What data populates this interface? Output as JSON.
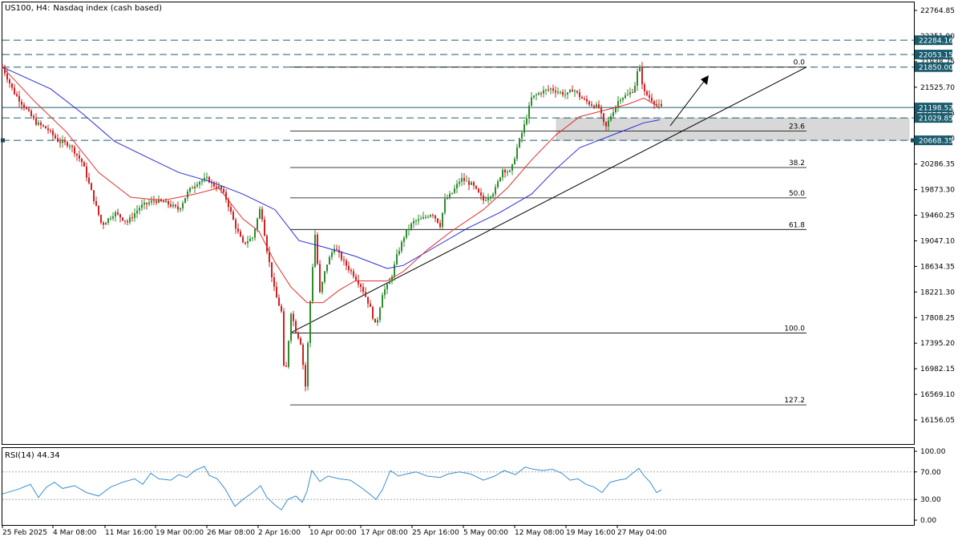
{
  "header": {
    "symbol": "US100, H4:",
    "description": "Nasdaq index (cash based)"
  },
  "colors": {
    "candle_up": "#2e8b2e",
    "candle_down": "#cc2222",
    "ma_fast": "#e03030",
    "ma_slow": "#2c2cd6",
    "rsi": "#3a8ed0",
    "level_line": "#1a5c6e",
    "badge_bg": "#1a5c6e",
    "badge_text": "#ffffff",
    "zone": "#d8d8d8"
  },
  "chart_data": [
    {
      "type": "candlestick",
      "title": "US100, H4: Nasdaq index (cash based)",
      "ylim": [
        15950,
        22960
      ],
      "y_ticks": [
        "22764.85",
        "22351.90",
        "21938.75",
        "21525.70",
        "21112.55",
        "20699.50",
        "20286.35",
        "19873.30",
        "19460.25",
        "19047.10",
        "18634.35",
        "18221.30",
        "17808.25",
        "17395.20",
        "16982.15",
        "16569.10",
        "16156.05"
      ],
      "x_ticks": [
        "25 Feb 2025",
        "4 Mar 08:00",
        "11 Mar 16:00",
        "19 Mar 00:00",
        "26 Mar 08:00",
        "2 Apr 16:00",
        "10 Apr 00:00",
        "17 Apr 08:00",
        "25 Apr 16:00",
        "5 May 00:00",
        "12 May 08:00",
        "19 May 16:00",
        "27 May 04:00"
      ],
      "price_path": [
        [
          0,
          21850
        ],
        [
          14,
          21450
        ],
        [
          28,
          21200
        ],
        [
          42,
          20950
        ],
        [
          56,
          20850
        ],
        [
          70,
          20650
        ],
        [
          84,
          20600
        ],
        [
          100,
          20300
        ],
        [
          112,
          19800
        ],
        [
          124,
          19300
        ],
        [
          140,
          19500
        ],
        [
          156,
          19350
        ],
        [
          172,
          19600
        ],
        [
          190,
          19700
        ],
        [
          206,
          19650
        ],
        [
          220,
          19550
        ],
        [
          232,
          19850
        ],
        [
          244,
          20000
        ],
        [
          256,
          20050
        ],
        [
          262,
          19950
        ],
        [
          272,
          19900
        ],
        [
          280,
          19700
        ],
        [
          290,
          19300
        ],
        [
          300,
          19000
        ],
        [
          312,
          19100
        ],
        [
          322,
          19600
        ],
        [
          330,
          18900
        ],
        [
          340,
          18200
        ],
        [
          348,
          17900
        ],
        [
          352,
          16700
        ],
        [
          360,
          17900
        ],
        [
          366,
          17600
        ],
        [
          372,
          17400
        ],
        [
          378,
          16700
        ],
        [
          385,
          18300
        ],
        [
          390,
          19150
        ],
        [
          396,
          18200
        ],
        [
          404,
          18650
        ],
        [
          414,
          18950
        ],
        [
          426,
          18700
        ],
        [
          438,
          18500
        ],
        [
          448,
          18300
        ],
        [
          458,
          18000
        ],
        [
          466,
          17650
        ],
        [
          474,
          18200
        ],
        [
          484,
          18400
        ],
        [
          492,
          18800
        ],
        [
          502,
          19150
        ],
        [
          512,
          19350
        ],
        [
          524,
          19400
        ],
        [
          536,
          19500
        ],
        [
          546,
          19300
        ],
        [
          552,
          19700
        ],
        [
          560,
          19800
        ],
        [
          572,
          20050
        ],
        [
          586,
          19950
        ],
        [
          600,
          19700
        ],
        [
          614,
          19850
        ],
        [
          624,
          20200
        ],
        [
          634,
          20150
        ],
        [
          642,
          20550
        ],
        [
          652,
          20950
        ],
        [
          660,
          21350
        ],
        [
          672,
          21450
        ],
        [
          684,
          21500
        ],
        [
          694,
          21450
        ],
        [
          704,
          21400
        ],
        [
          712,
          21500
        ],
        [
          722,
          21350
        ],
        [
          734,
          21250
        ],
        [
          744,
          21200
        ],
        [
          752,
          20850
        ],
        [
          760,
          21100
        ],
        [
          770,
          21350
        ],
        [
          780,
          21400
        ],
        [
          788,
          21500
        ],
        [
          794,
          21900
        ],
        [
          800,
          21450
        ],
        [
          808,
          21350
        ],
        [
          816,
          21250
        ],
        [
          822,
          21200
        ]
      ],
      "ma_fast": [
        [
          0,
          21850
        ],
        [
          40,
          21300
        ],
        [
          80,
          20800
        ],
        [
          120,
          20150
        ],
        [
          160,
          19750
        ],
        [
          200,
          19700
        ],
        [
          240,
          19800
        ],
        [
          270,
          19900
        ],
        [
          300,
          19400
        ],
        [
          320,
          19200
        ],
        [
          340,
          18700
        ],
        [
          360,
          18300
        ],
        [
          380,
          18050
        ],
        [
          400,
          18050
        ],
        [
          420,
          18250
        ],
        [
          440,
          18400
        ],
        [
          460,
          18400
        ],
        [
          480,
          18400
        ],
        [
          500,
          18550
        ],
        [
          530,
          18900
        ],
        [
          560,
          19200
        ],
        [
          600,
          19550
        ],
        [
          630,
          19900
        ],
        [
          660,
          20350
        ],
        [
          690,
          20750
        ],
        [
          720,
          21050
        ],
        [
          750,
          21150
        ],
        [
          780,
          21250
        ],
        [
          800,
          21350
        ],
        [
          820,
          21200
        ]
      ],
      "ma_slow": [
        [
          0,
          21850
        ],
        [
          60,
          21500
        ],
        [
          100,
          21100
        ],
        [
          140,
          20650
        ],
        [
          180,
          20400
        ],
        [
          220,
          20150
        ],
        [
          260,
          20000
        ],
        [
          300,
          19800
        ],
        [
          340,
          19550
        ],
        [
          370,
          19050
        ],
        [
          400,
          18950
        ],
        [
          440,
          18800
        ],
        [
          480,
          18600
        ],
        [
          500,
          18650
        ],
        [
          540,
          18950
        ],
        [
          580,
          19250
        ],
        [
          620,
          19500
        ],
        [
          660,
          19800
        ],
        [
          690,
          20200
        ],
        [
          720,
          20550
        ],
        [
          750,
          20700
        ],
        [
          780,
          20850
        ],
        [
          800,
          20950
        ],
        [
          820,
          21000
        ]
      ],
      "horizontal_levels": [
        {
          "value": 22284.16,
          "label": "22284.16",
          "style": "dashed"
        },
        {
          "value": 22053.15,
          "label": "22053.15",
          "style": "dashed"
        },
        {
          "value": 21850.0,
          "label": "21850.00",
          "style": "dashed"
        },
        {
          "value": 21198.52,
          "label": "21198.52",
          "style": "solid"
        },
        {
          "value": 21029.85,
          "label": "21029.85",
          "style": "dashed"
        },
        {
          "value": 20668.35,
          "label": "20668.35",
          "style": "dashed"
        }
      ],
      "support_zone": {
        "from": 20668.35,
        "to": 21029.85
      },
      "fibonacci": [
        {
          "ratio": "0.0",
          "value": 21850
        },
        {
          "ratio": "23.6",
          "value": 20820
        },
        {
          "ratio": "38.2",
          "value": 20230
        },
        {
          "ratio": "50.0",
          "value": 19740
        },
        {
          "ratio": "61.8",
          "value": 19230
        },
        {
          "ratio": "100.0",
          "value": 17560
        },
        {
          "ratio": "127.2",
          "value": 16400
        }
      ]
    },
    {
      "type": "line",
      "title": "RSI(14) 44.34",
      "label": "RSI(14) 44.34",
      "ylim": [
        -5,
        105
      ],
      "y_ticks": [
        "100.00",
        "70.00",
        "30.00",
        "0.00"
      ],
      "levels": [
        70,
        30
      ],
      "values": [
        [
          0,
          38
        ],
        [
          20,
          45
        ],
        [
          35,
          52
        ],
        [
          45,
          33
        ],
        [
          55,
          48
        ],
        [
          65,
          55
        ],
        [
          75,
          46
        ],
        [
          90,
          50
        ],
        [
          105,
          40
        ],
        [
          120,
          35
        ],
        [
          135,
          48
        ],
        [
          150,
          55
        ],
        [
          165,
          60
        ],
        [
          175,
          52
        ],
        [
          185,
          68
        ],
        [
          195,
          60
        ],
        [
          210,
          58
        ],
        [
          220,
          66
        ],
        [
          230,
          62
        ],
        [
          240,
          72
        ],
        [
          252,
          78
        ],
        [
          258,
          65
        ],
        [
          268,
          60
        ],
        [
          278,
          45
        ],
        [
          290,
          20
        ],
        [
          300,
          30
        ],
        [
          312,
          40
        ],
        [
          322,
          50
        ],
        [
          330,
          33
        ],
        [
          340,
          22
        ],
        [
          348,
          15
        ],
        [
          356,
          30
        ],
        [
          366,
          35
        ],
        [
          374,
          26
        ],
        [
          380,
          42
        ],
        [
          386,
          72
        ],
        [
          396,
          56
        ],
        [
          406,
          64
        ],
        [
          420,
          60
        ],
        [
          434,
          58
        ],
        [
          448,
          47
        ],
        [
          458,
          38
        ],
        [
          466,
          30
        ],
        [
          474,
          44
        ],
        [
          484,
          72
        ],
        [
          494,
          64
        ],
        [
          504,
          67
        ],
        [
          516,
          70
        ],
        [
          530,
          64
        ],
        [
          546,
          62
        ],
        [
          556,
          67
        ],
        [
          570,
          70
        ],
        [
          584,
          67
        ],
        [
          600,
          58
        ],
        [
          614,
          64
        ],
        [
          626,
          72
        ],
        [
          640,
          66
        ],
        [
          652,
          77
        ],
        [
          662,
          74
        ],
        [
          674,
          72
        ],
        [
          686,
          74
        ],
        [
          698,
          68
        ],
        [
          708,
          58
        ],
        [
          718,
          60
        ],
        [
          728,
          52
        ],
        [
          738,
          48
        ],
        [
          748,
          40
        ],
        [
          758,
          55
        ],
        [
          768,
          58
        ],
        [
          778,
          60
        ],
        [
          786,
          68
        ],
        [
          794,
          75
        ],
        [
          800,
          65
        ],
        [
          808,
          55
        ],
        [
          816,
          40
        ],
        [
          822,
          44
        ]
      ]
    }
  ]
}
